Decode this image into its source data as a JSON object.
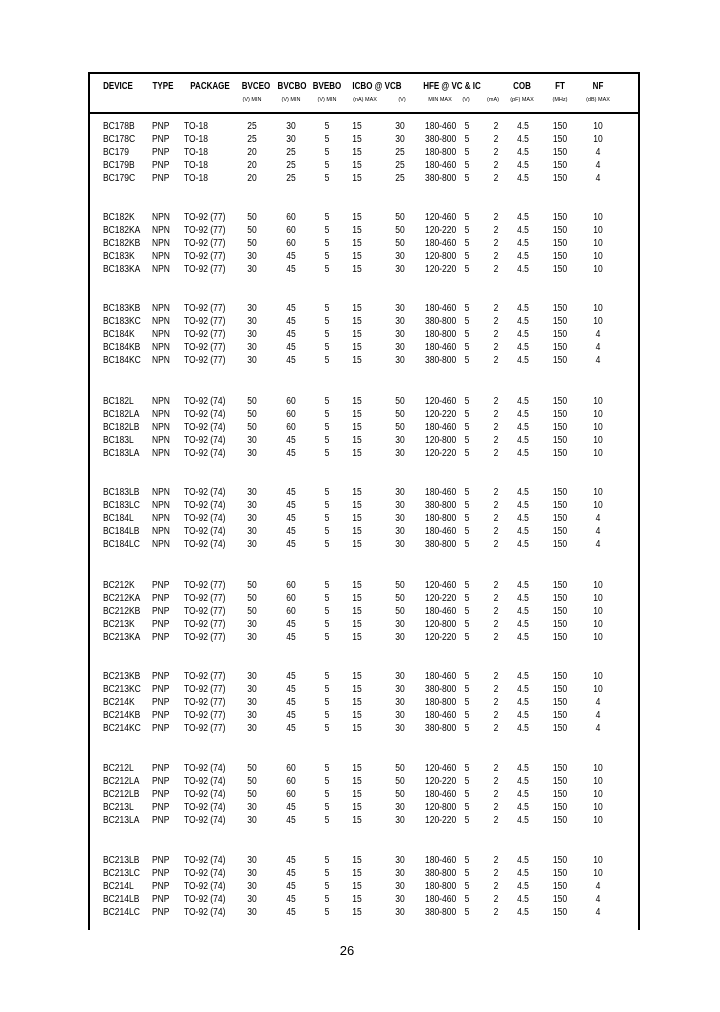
{
  "headers": [
    {
      "label": "DEVICE",
      "unit": ""
    },
    {
      "label": "TYPE",
      "unit": ""
    },
    {
      "label": "PACKAGE",
      "unit": ""
    },
    {
      "label": "BVCEO",
      "unit": "(V) MIN"
    },
    {
      "label": "BVCBO",
      "unit": "(V) MIN"
    },
    {
      "label": "BVEBO",
      "unit": "(V) MIN"
    },
    {
      "label": "ICBO @ VCB",
      "unit": "(nA) MAX"
    },
    {
      "label": "",
      "unit": "(V)"
    },
    {
      "label": "HFE @ VC & IC",
      "unit": "MIN MAX"
    },
    {
      "label": "",
      "unit": "(V)"
    },
    {
      "label": "",
      "unit": "(mA)"
    },
    {
      "label": "COB",
      "unit": "(pF) MAX"
    },
    {
      "label": "FT",
      "unit": "(MHz)"
    },
    {
      "label": "NF",
      "unit": "(dB) MAX"
    }
  ],
  "groups": [
    [
      [
        "BC178B",
        "PNP",
        "TO-18",
        "25",
        "30",
        "5",
        "15",
        "30",
        "180-460",
        "5",
        "2",
        "4.5",
        "150",
        "10"
      ],
      [
        "BC178C",
        "PNP",
        "TO-18",
        "25",
        "30",
        "5",
        "15",
        "30",
        "380-800",
        "5",
        "2",
        "4.5",
        "150",
        "10"
      ],
      [
        "BC179",
        "PNP",
        "TO-18",
        "20",
        "25",
        "5",
        "15",
        "25",
        "180-800",
        "5",
        "2",
        "4.5",
        "150",
        "4"
      ],
      [
        "BC179B",
        "PNP",
        "TO-18",
        "20",
        "25",
        "5",
        "15",
        "25",
        "180-460",
        "5",
        "2",
        "4.5",
        "150",
        "4"
      ],
      [
        "BC179C",
        "PNP",
        "TO-18",
        "20",
        "25",
        "5",
        "15",
        "25",
        "380-800",
        "5",
        "2",
        "4.5",
        "150",
        "4"
      ]
    ],
    [
      [
        "BC182K",
        "NPN",
        "TO-92 (77)",
        "50",
        "60",
        "5",
        "15",
        "50",
        "120-460",
        "5",
        "2",
        "4.5",
        "150",
        "10"
      ],
      [
        "BC182KA",
        "NPN",
        "TO-92 (77)",
        "50",
        "60",
        "5",
        "15",
        "50",
        "120-220",
        "5",
        "2",
        "4.5",
        "150",
        "10"
      ],
      [
        "BC182KB",
        "NPN",
        "TO-92 (77)",
        "50",
        "60",
        "5",
        "15",
        "50",
        "180-460",
        "5",
        "2",
        "4.5",
        "150",
        "10"
      ],
      [
        "BC183K",
        "NPN",
        "TO-92 (77)",
        "30",
        "45",
        "5",
        "15",
        "30",
        "120-800",
        "5",
        "2",
        "4.5",
        "150",
        "10"
      ],
      [
        "BC183KA",
        "NPN",
        "TO-92 (77)",
        "30",
        "45",
        "5",
        "15",
        "30",
        "120-220",
        "5",
        "2",
        "4.5",
        "150",
        "10"
      ]
    ],
    [
      [
        "BC183KB",
        "NPN",
        "TO-92 (77)",
        "30",
        "45",
        "5",
        "15",
        "30",
        "180-460",
        "5",
        "2",
        "4.5",
        "150",
        "10"
      ],
      [
        "BC183KC",
        "NPN",
        "TO-92 (77)",
        "30",
        "45",
        "5",
        "15",
        "30",
        "380-800",
        "5",
        "2",
        "4.5",
        "150",
        "10"
      ],
      [
        "BC184K",
        "NPN",
        "TO-92 (77)",
        "30",
        "45",
        "5",
        "15",
        "30",
        "180-800",
        "5",
        "2",
        "4.5",
        "150",
        "4"
      ],
      [
        "BC184KB",
        "NPN",
        "TO-92 (77)",
        "30",
        "45",
        "5",
        "15",
        "30",
        "180-460",
        "5",
        "2",
        "4.5",
        "150",
        "4"
      ],
      [
        "BC184KC",
        "NPN",
        "TO-92 (77)",
        "30",
        "45",
        "5",
        "15",
        "30",
        "380-800",
        "5",
        "2",
        "4.5",
        "150",
        "4"
      ]
    ],
    [
      [
        "BC182L",
        "NPN",
        "TO-92 (74)",
        "50",
        "60",
        "5",
        "15",
        "50",
        "120-460",
        "5",
        "2",
        "4.5",
        "150",
        "10"
      ],
      [
        "BC182LA",
        "NPN",
        "TO-92 (74)",
        "50",
        "60",
        "5",
        "15",
        "50",
        "120-220",
        "5",
        "2",
        "4.5",
        "150",
        "10"
      ],
      [
        "BC182LB",
        "NPN",
        "TO-92 (74)",
        "50",
        "60",
        "5",
        "15",
        "50",
        "180-460",
        "5",
        "2",
        "4.5",
        "150",
        "10"
      ],
      [
        "BC183L",
        "NPN",
        "TO-92 (74)",
        "30",
        "45",
        "5",
        "15",
        "30",
        "120-800",
        "5",
        "2",
        "4.5",
        "150",
        "10"
      ],
      [
        "BC183LA",
        "NPN",
        "TO-92 (74)",
        "30",
        "45",
        "5",
        "15",
        "30",
        "120-220",
        "5",
        "2",
        "4.5",
        "150",
        "10"
      ]
    ],
    [
      [
        "BC183LB",
        "NPN",
        "TO-92 (74)",
        "30",
        "45",
        "5",
        "15",
        "30",
        "180-460",
        "5",
        "2",
        "4.5",
        "150",
        "10"
      ],
      [
        "BC183LC",
        "NPN",
        "TO-92 (74)",
        "30",
        "45",
        "5",
        "15",
        "30",
        "380-800",
        "5",
        "2",
        "4.5",
        "150",
        "10"
      ],
      [
        "BC184L",
        "NPN",
        "TO-92 (74)",
        "30",
        "45",
        "5",
        "15",
        "30",
        "180-800",
        "5",
        "2",
        "4.5",
        "150",
        "4"
      ],
      [
        "BC184LB",
        "NPN",
        "TO-92 (74)",
        "30",
        "45",
        "5",
        "15",
        "30",
        "180-460",
        "5",
        "2",
        "4.5",
        "150",
        "4"
      ],
      [
        "BC184LC",
        "NPN",
        "TO-92 (74)",
        "30",
        "45",
        "5",
        "15",
        "30",
        "380-800",
        "5",
        "2",
        "4.5",
        "150",
        "4"
      ]
    ],
    [
      [
        "BC212K",
        "PNP",
        "TO-92 (77)",
        "50",
        "60",
        "5",
        "15",
        "50",
        "120-460",
        "5",
        "2",
        "4.5",
        "150",
        "10"
      ],
      [
        "BC212KA",
        "PNP",
        "TO-92 (77)",
        "50",
        "60",
        "5",
        "15",
        "50",
        "120-220",
        "5",
        "2",
        "4.5",
        "150",
        "10"
      ],
      [
        "BC212KB",
        "PNP",
        "TO-92 (77)",
        "50",
        "60",
        "5",
        "15",
        "50",
        "180-460",
        "5",
        "2",
        "4.5",
        "150",
        "10"
      ],
      [
        "BC213K",
        "PNP",
        "TO-92 (77)",
        "30",
        "45",
        "5",
        "15",
        "30",
        "120-800",
        "5",
        "2",
        "4.5",
        "150",
        "10"
      ],
      [
        "BC213KA",
        "PNP",
        "TO-92 (77)",
        "30",
        "45",
        "5",
        "15",
        "30",
        "120-220",
        "5",
        "2",
        "4.5",
        "150",
        "10"
      ]
    ],
    [
      [
        "BC213KB",
        "PNP",
        "TO-92 (77)",
        "30",
        "45",
        "5",
        "15",
        "30",
        "180-460",
        "5",
        "2",
        "4.5",
        "150",
        "10"
      ],
      [
        "BC213KC",
        "PNP",
        "TO-92 (77)",
        "30",
        "45",
        "5",
        "15",
        "30",
        "380-800",
        "5",
        "2",
        "4.5",
        "150",
        "10"
      ],
      [
        "BC214K",
        "PNP",
        "TO-92 (77)",
        "30",
        "45",
        "5",
        "15",
        "30",
        "180-800",
        "5",
        "2",
        "4.5",
        "150",
        "4"
      ],
      [
        "BC214KB",
        "PNP",
        "TO-92 (77)",
        "30",
        "45",
        "5",
        "15",
        "30",
        "180-460",
        "5",
        "2",
        "4.5",
        "150",
        "4"
      ],
      [
        "BC214KC",
        "PNP",
        "TO-92 (77)",
        "30",
        "45",
        "5",
        "15",
        "30",
        "380-800",
        "5",
        "2",
        "4.5",
        "150",
        "4"
      ]
    ],
    [
      [
        "BC212L",
        "PNP",
        "TO-92 (74)",
        "50",
        "60",
        "5",
        "15",
        "50",
        "120-460",
        "5",
        "2",
        "4.5",
        "150",
        "10"
      ],
      [
        "BC212LA",
        "PNP",
        "TO-92 (74)",
        "50",
        "60",
        "5",
        "15",
        "50",
        "120-220",
        "5",
        "2",
        "4.5",
        "150",
        "10"
      ],
      [
        "BC212LB",
        "PNP",
        "TO-92 (74)",
        "50",
        "60",
        "5",
        "15",
        "50",
        "180-460",
        "5",
        "2",
        "4.5",
        "150",
        "10"
      ],
      [
        "BC213L",
        "PNP",
        "TO-92 (74)",
        "30",
        "45",
        "5",
        "15",
        "30",
        "120-800",
        "5",
        "2",
        "4.5",
        "150",
        "10"
      ],
      [
        "BC213LA",
        "PNP",
        "TO-92 (74)",
        "30",
        "45",
        "5",
        "15",
        "30",
        "120-220",
        "5",
        "2",
        "4.5",
        "150",
        "10"
      ]
    ],
    [
      [
        "BC213LB",
        "PNP",
        "TO-92 (74)",
        "30",
        "45",
        "5",
        "15",
        "30",
        "180-460",
        "5",
        "2",
        "4.5",
        "150",
        "10"
      ],
      [
        "BC213LC",
        "PNP",
        "TO-92 (74)",
        "30",
        "45",
        "5",
        "15",
        "30",
        "380-800",
        "5",
        "2",
        "4.5",
        "150",
        "10"
      ],
      [
        "BC214L",
        "PNP",
        "TO-92 (74)",
        "30",
        "45",
        "5",
        "15",
        "30",
        "180-800",
        "5",
        "2",
        "4.5",
        "150",
        "4"
      ],
      [
        "BC214LB",
        "PNP",
        "TO-92 (74)",
        "30",
        "45",
        "5",
        "15",
        "30",
        "180-460",
        "5",
        "2",
        "4.5",
        "150",
        "4"
      ],
      [
        "BC214LC",
        "PNP",
        "TO-92 (74)",
        "30",
        "45",
        "5",
        "15",
        "30",
        "380-800",
        "5",
        "2",
        "4.5",
        "150",
        "4"
      ]
    ]
  ],
  "page_number": "26"
}
